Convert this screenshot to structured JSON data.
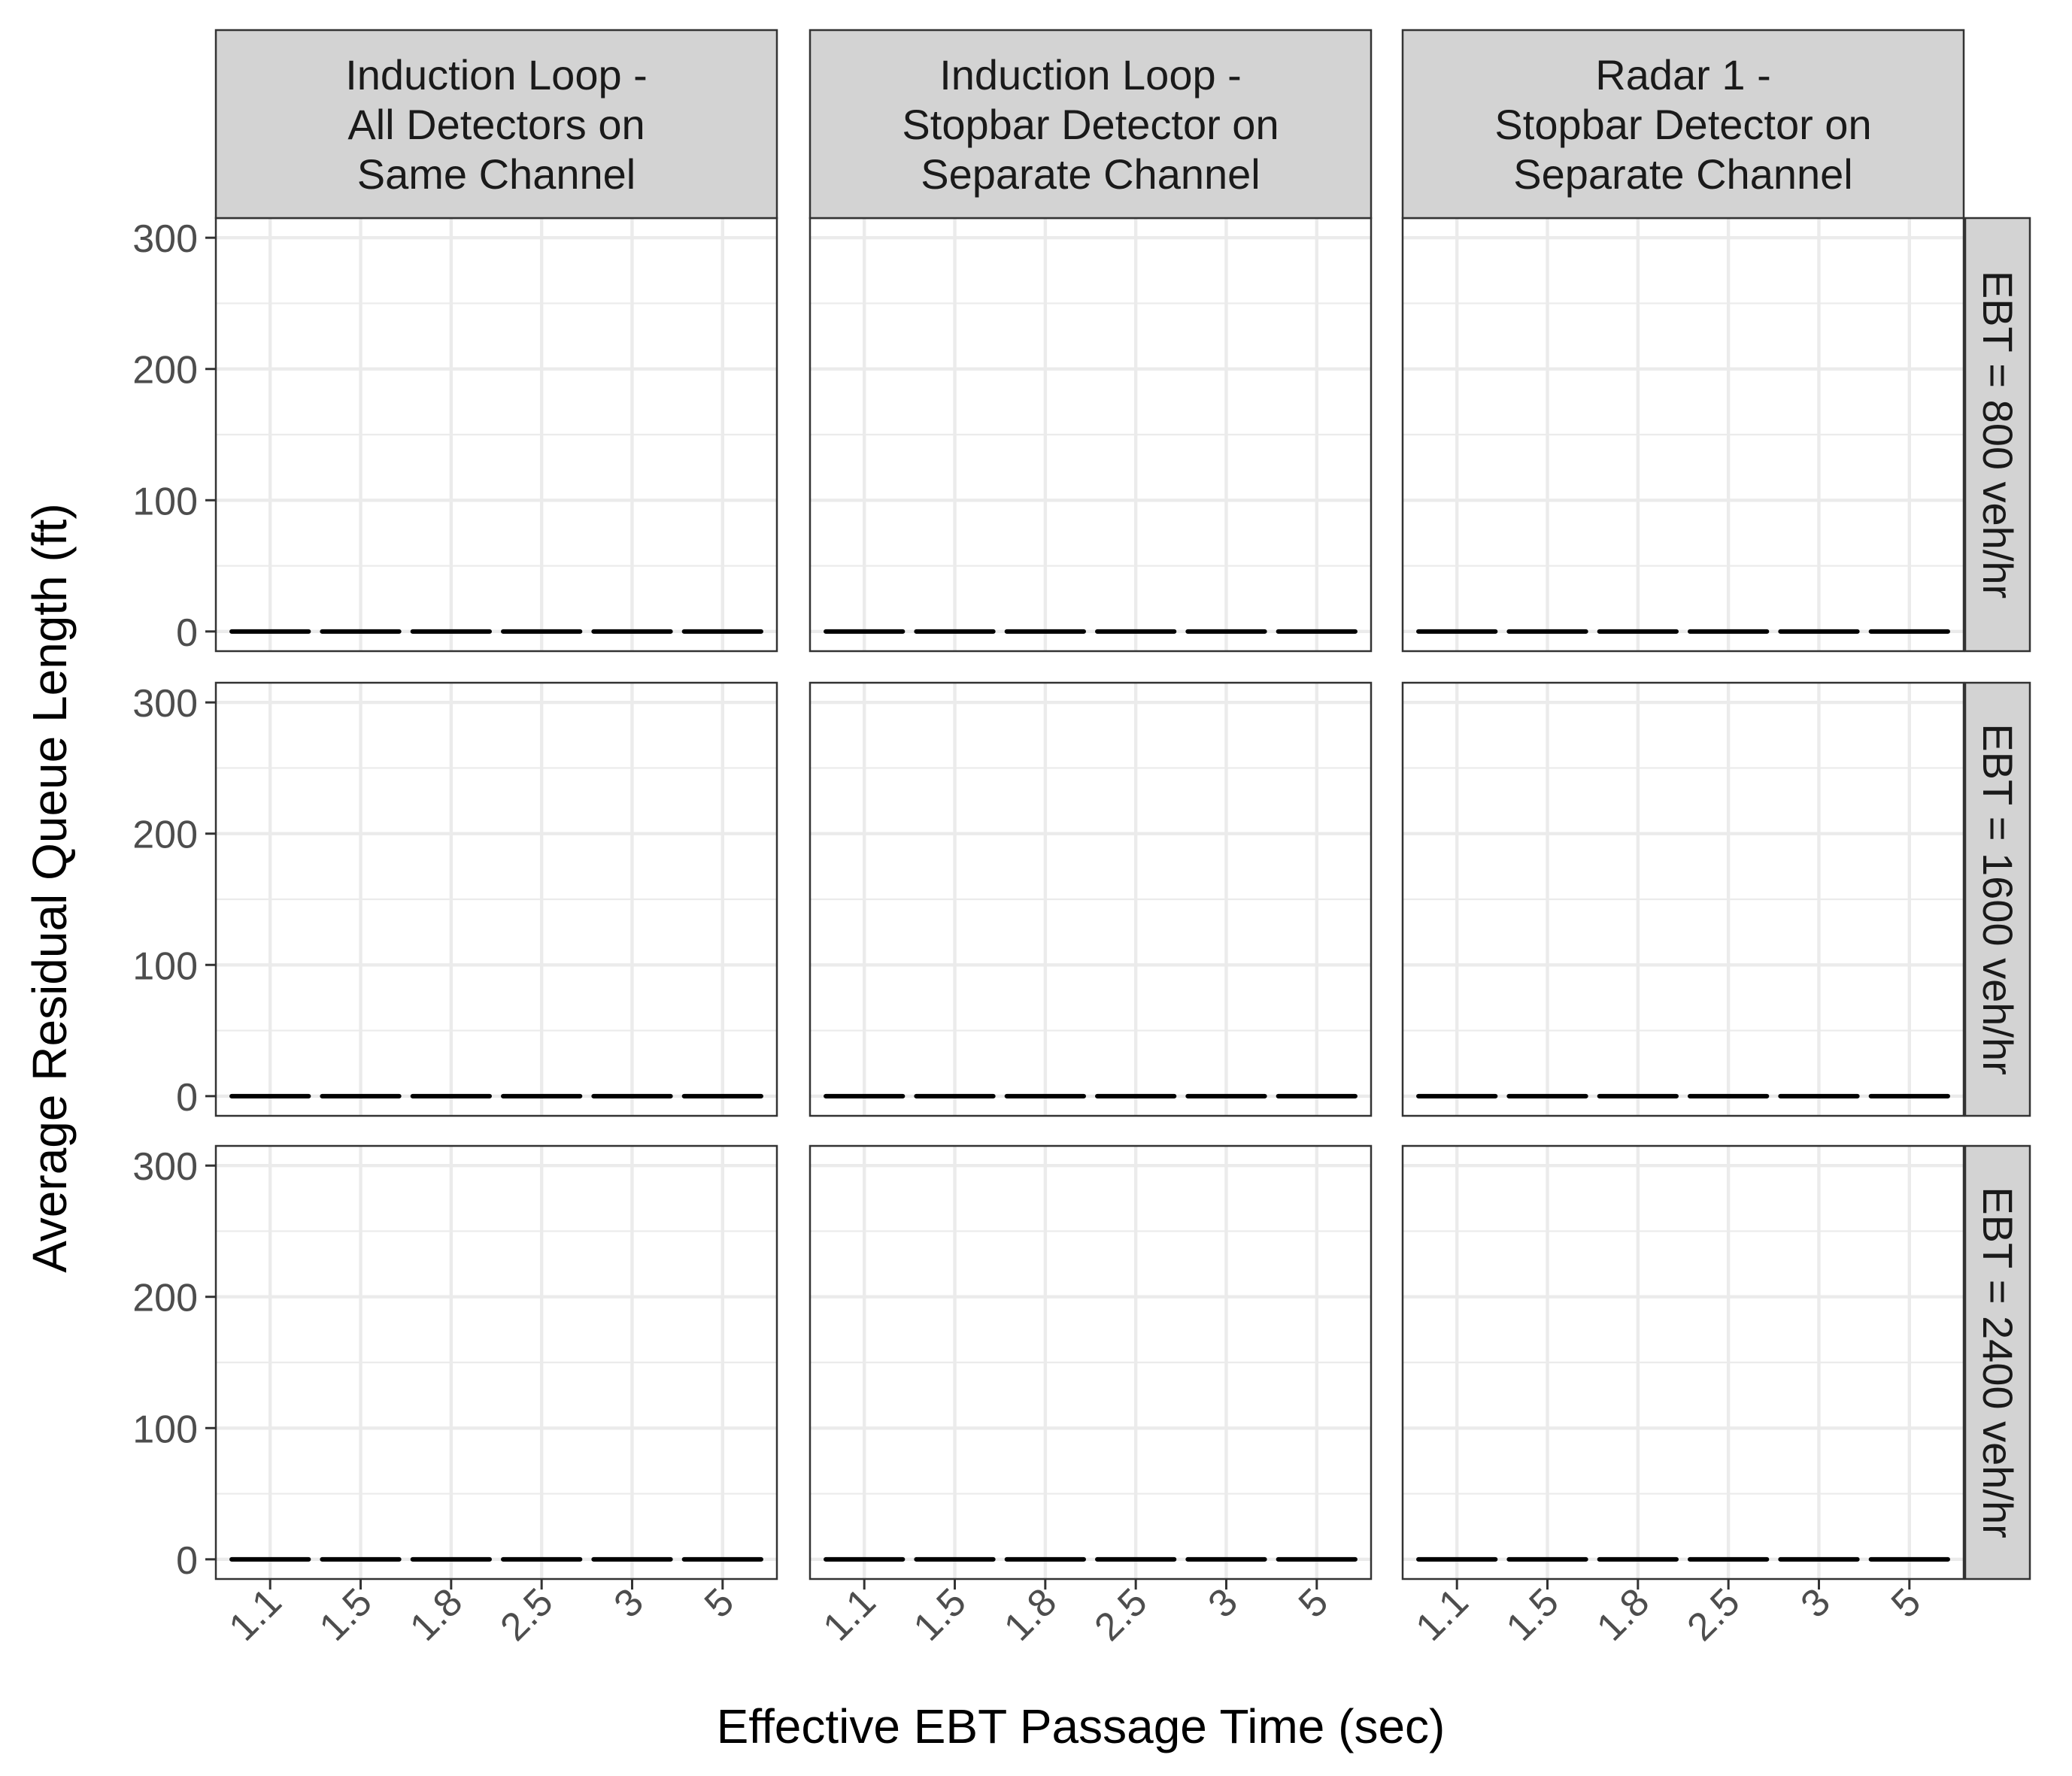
{
  "chart_data": {
    "type": "bar",
    "layout": "facet-grid",
    "xlabel": "Effective EBT Passage Time (sec)",
    "ylabel": "Average Residual Queue Length (ft)",
    "categories": [
      "1.1",
      "1.5",
      "1.8",
      "2.5",
      "3",
      "5"
    ],
    "y_ticks": [
      0,
      100,
      200,
      300
    ],
    "y_tick_labels": [
      "0",
      "100",
      "200",
      "300"
    ],
    "ylim": [
      -15,
      315
    ],
    "grid": true,
    "columns": [
      {
        "label": "Induction Loop -\nAll Detectors on\nSame Channel"
      },
      {
        "label": "Induction Loop -\nStopbar Detector on\nSeparate Channel"
      },
      {
        "label": "Radar 1 -\nStopbar Detector on\nSeparate Channel"
      }
    ],
    "rows": [
      {
        "label": "EBT = 800 veh/hr"
      },
      {
        "label": "EBT = 1600 veh/hr"
      },
      {
        "label": "EBT = 2400 veh/hr"
      }
    ],
    "panels": [
      {
        "row": "EBT = 800 veh/hr",
        "column": "Induction Loop - All Detectors on Same Channel",
        "values": [
          0,
          0,
          0,
          0,
          0,
          0
        ]
      },
      {
        "row": "EBT = 800 veh/hr",
        "column": "Induction Loop - Stopbar Detector on Separate Channel",
        "values": [
          0,
          0,
          0,
          0,
          0,
          0
        ]
      },
      {
        "row": "EBT = 800 veh/hr",
        "column": "Radar 1 - Stopbar Detector on Separate Channel",
        "values": [
          0,
          0,
          0,
          0,
          0,
          0
        ]
      },
      {
        "row": "EBT = 1600 veh/hr",
        "column": "Induction Loop - All Detectors on Same Channel",
        "values": [
          0,
          0,
          0,
          0,
          0,
          0
        ]
      },
      {
        "row": "EBT = 1600 veh/hr",
        "column": "Induction Loop - Stopbar Detector on Separate Channel",
        "values": [
          0,
          0,
          0,
          0,
          0,
          0
        ]
      },
      {
        "row": "EBT = 1600 veh/hr",
        "column": "Radar 1 - Stopbar Detector on Separate Channel",
        "values": [
          0,
          0,
          0,
          0,
          0,
          0
        ]
      },
      {
        "row": "EBT = 2400 veh/hr",
        "column": "Induction Loop - All Detectors on Same Channel",
        "values": [
          0,
          0,
          0,
          0,
          0,
          0
        ]
      },
      {
        "row": "EBT = 2400 veh/hr",
        "column": "Induction Loop - Stopbar Detector on Separate Channel",
        "values": [
          0,
          0,
          0,
          0,
          0,
          0
        ]
      },
      {
        "row": "EBT = 2400 veh/hr",
        "column": "Radar 1 - Stopbar Detector on Separate Channel",
        "values": [
          0,
          0,
          0,
          0,
          0,
          0
        ]
      }
    ],
    "colors": {
      "strip_fill": "#d3d3d3",
      "panel_border": "#333333",
      "grid_major": "#ebebeb",
      "tick_text": "#4d4d4d",
      "mark": "#000000"
    }
  }
}
